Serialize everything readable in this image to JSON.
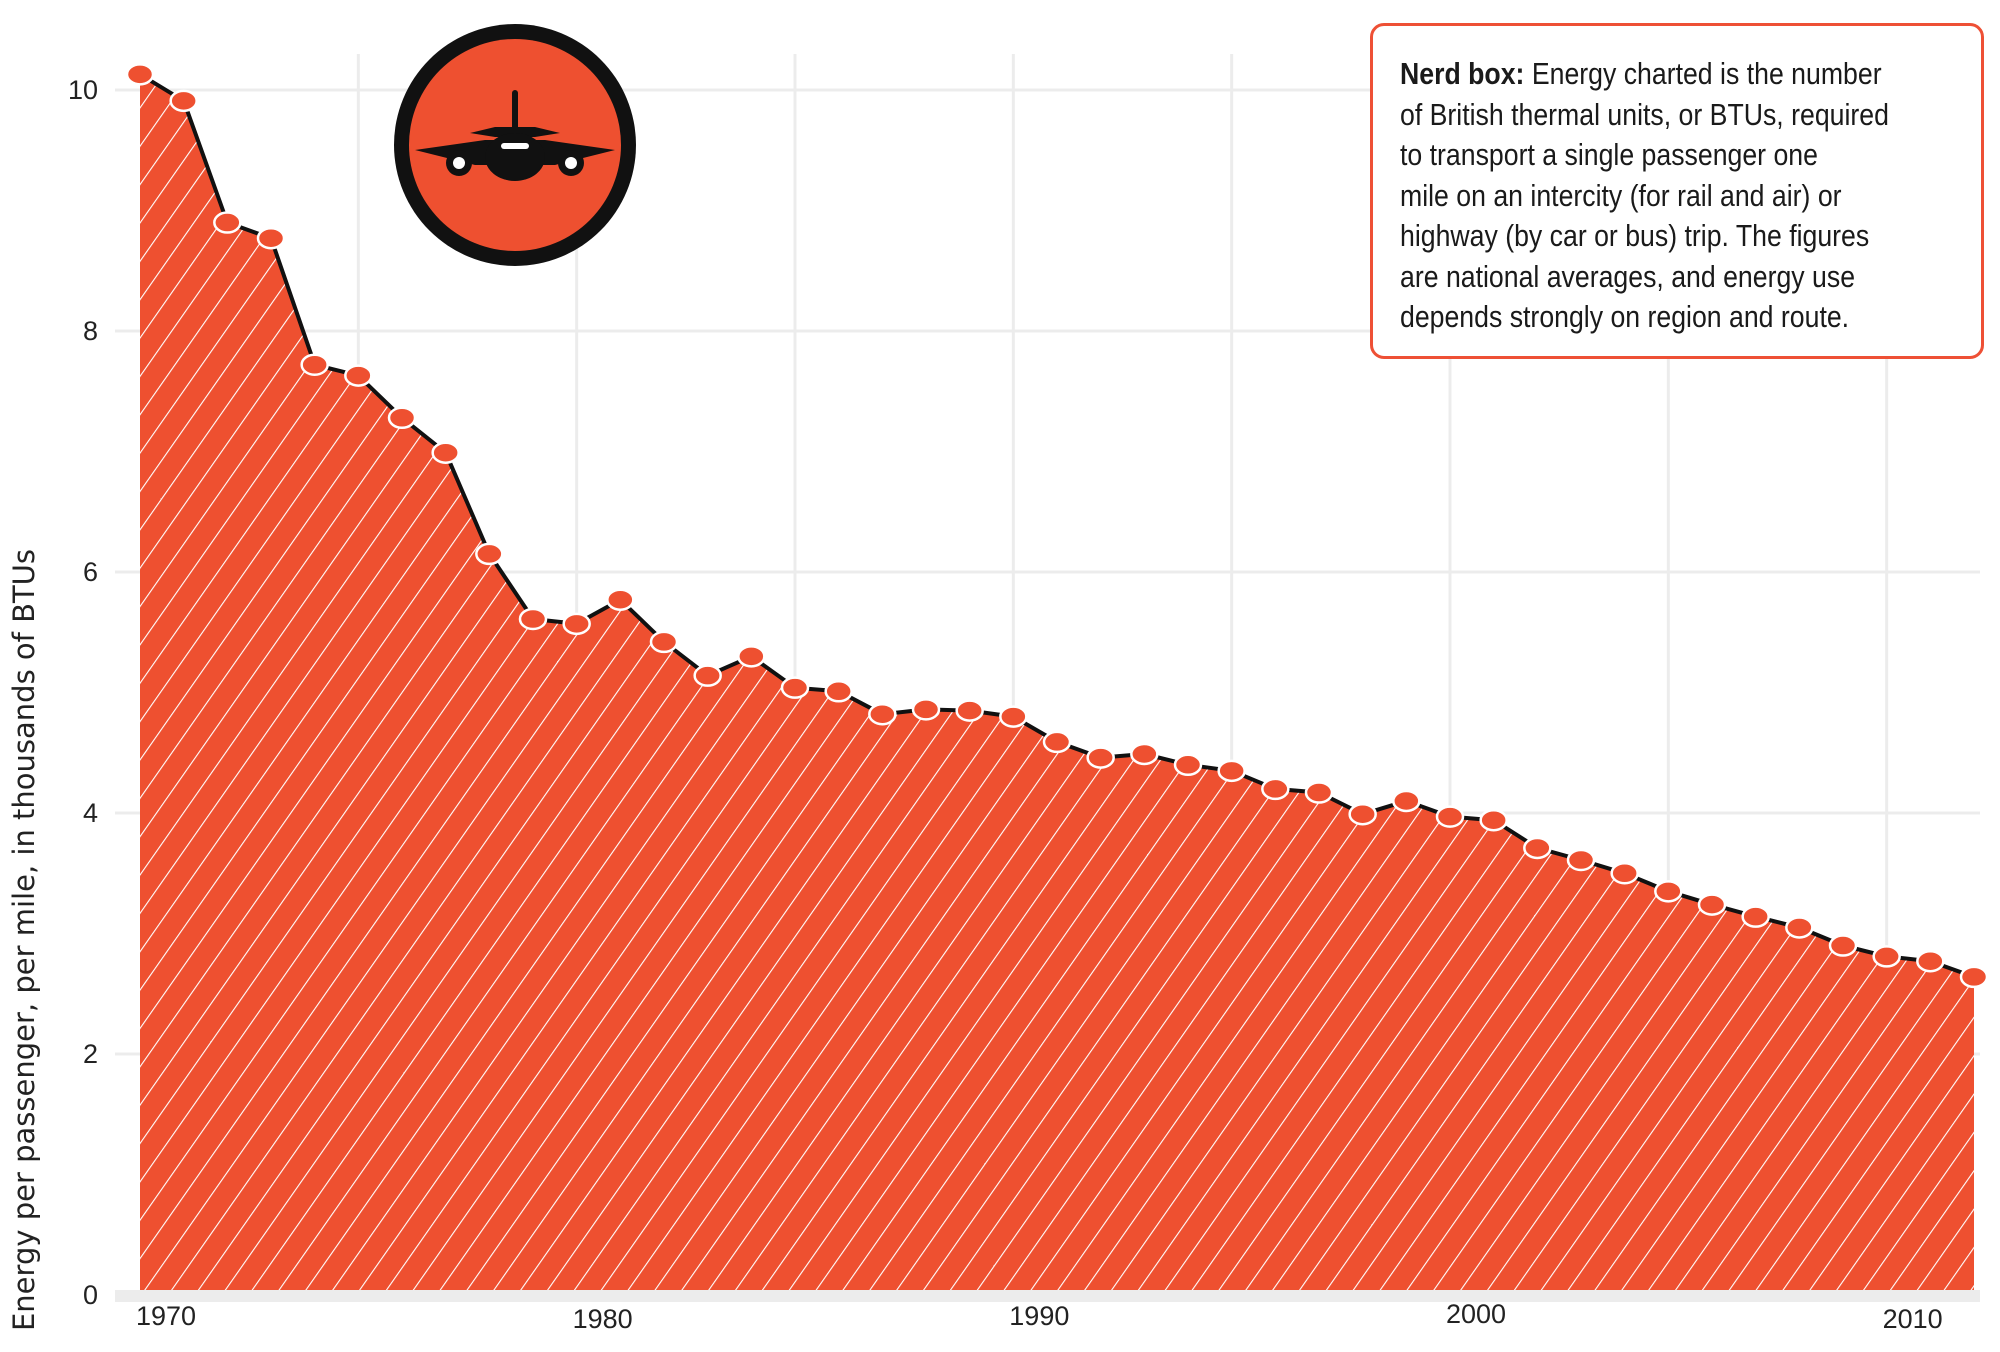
{
  "chart_data": {
    "type": "area",
    "title": "",
    "xlabel": "",
    "ylabel": "Energy per passenger, per mile, in thousands of BTUs",
    "x": [
      1970,
      1971,
      1972,
      1973,
      1974,
      1975,
      1976,
      1977,
      1978,
      1979,
      1980,
      1981,
      1982,
      1983,
      1984,
      1985,
      1986,
      1987,
      1988,
      1989,
      1990,
      1991,
      1992,
      1993,
      1994,
      1995,
      1996,
      1997,
      1998,
      1999,
      2000,
      2001,
      2002,
      2003,
      2004,
      2005,
      2006,
      2007,
      2008,
      2009,
      2010,
      2011,
      2012
    ],
    "values": [
      10.13,
      9.91,
      8.9,
      8.77,
      7.72,
      7.63,
      7.28,
      6.99,
      6.15,
      5.61,
      5.57,
      5.77,
      5.42,
      5.14,
      5.3,
      5.04,
      5.01,
      4.82,
      4.86,
      4.85,
      4.8,
      4.59,
      4.46,
      4.49,
      4.4,
      4.35,
      4.2,
      4.17,
      3.99,
      4.1,
      3.97,
      3.94,
      3.71,
      3.61,
      3.5,
      3.35,
      3.24,
      3.14,
      3.05,
      2.9,
      2.81,
      2.77,
      2.64
    ],
    "xlim": [
      1970,
      2012
    ],
    "ylim": [
      0,
      10
    ],
    "x_ticks": [
      "1970",
      "1980",
      "1990",
      "2000",
      "2010"
    ],
    "y_ticks": [
      "0",
      "2",
      "4",
      "6",
      "8",
      "10"
    ],
    "grid": true,
    "legend": "none"
  },
  "colors": {
    "fill": "#ee5030",
    "line": "#111111",
    "grid": "#ececec",
    "accent": "#ee5035"
  },
  "icon": "airplane-icon",
  "nerd_box": {
    "heading": "Nerd box:",
    "lines": [
      " Energy charted is the number",
      "of British thermal units, or BTUs, required",
      "to transport a single passenger one",
      "mile on an intercity (for rail and air) or",
      "highway (by car or bus) trip. The figures",
      "are national averages, and energy use",
      "depends strongly on region and route."
    ]
  }
}
